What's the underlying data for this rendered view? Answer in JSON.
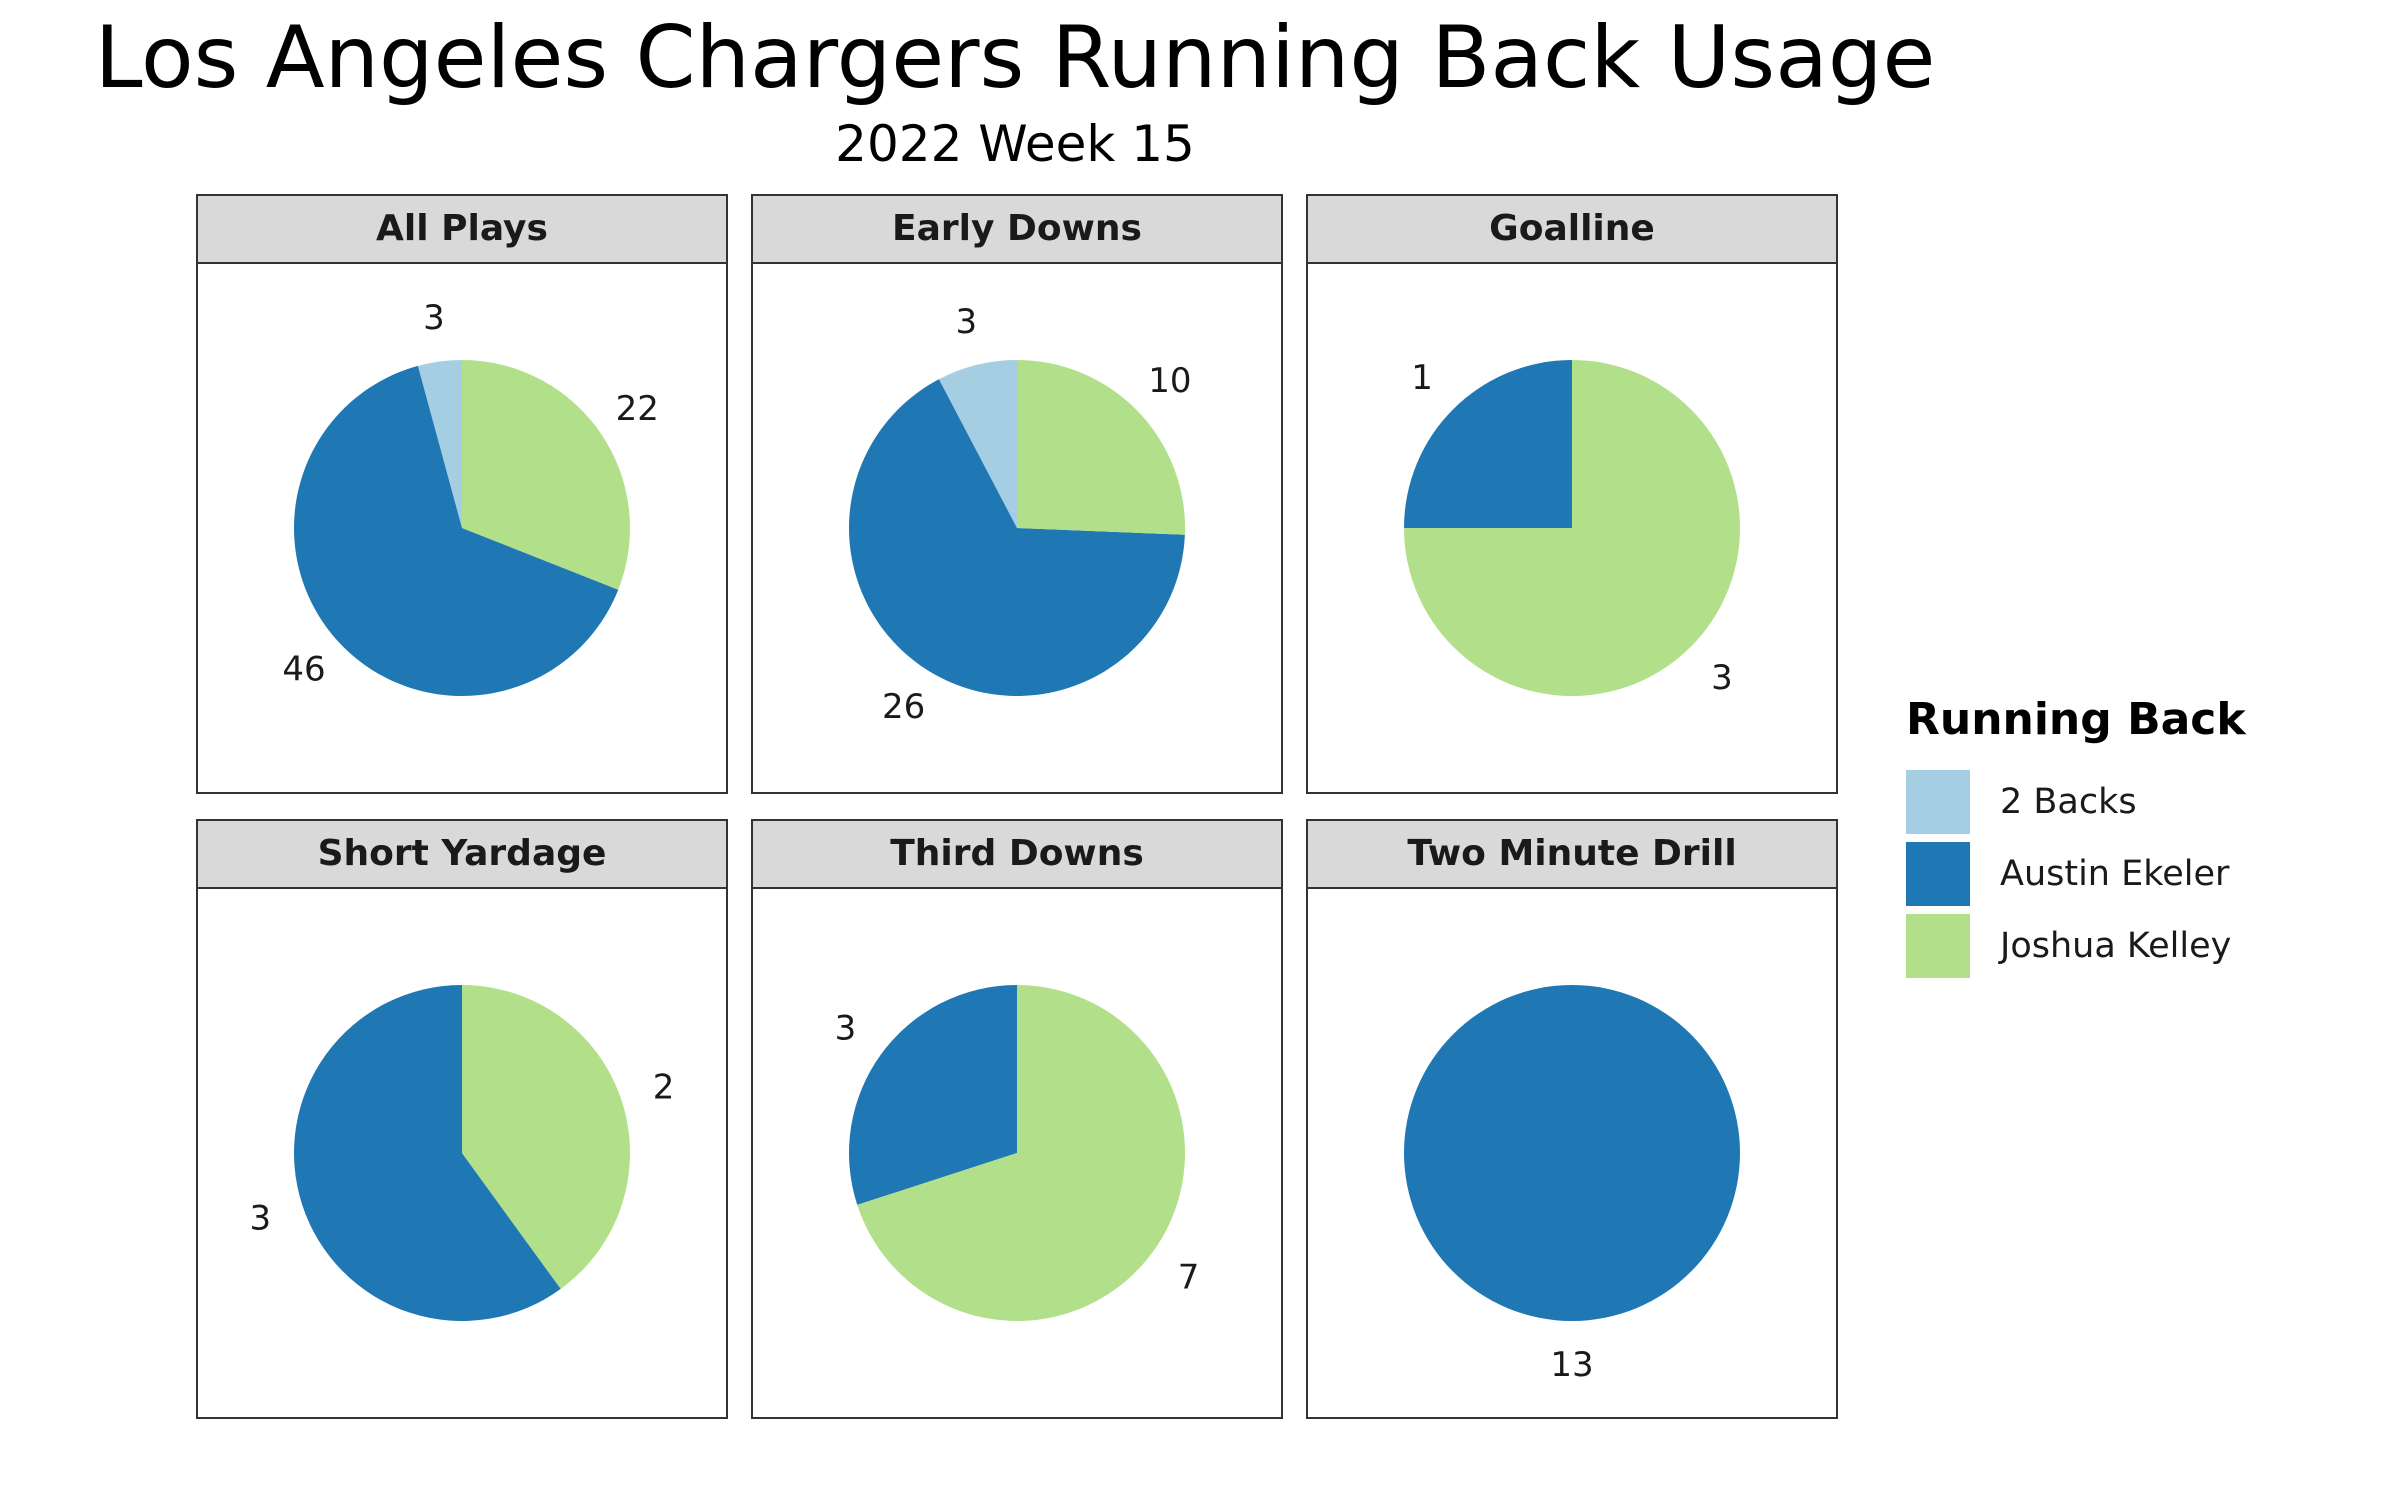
{
  "title": "Los Angeles Chargers Running Back Usage",
  "subtitle": "2022 Week 15",
  "legend": {
    "title": "Running Back",
    "items": [
      {
        "label": "2 Backs",
        "color": "#a6cee3"
      },
      {
        "label": "Austin Ekeler",
        "color": "#1f78b4"
      },
      {
        "label": "Joshua Kelley",
        "color": "#b2df8a"
      }
    ]
  },
  "chart_data": {
    "type": "pie",
    "facet_order": [
      "All Plays",
      "Early Downs",
      "Goalline",
      "Short Yardage",
      "Third Downs",
      "Two Minute Drill"
    ],
    "series_names": [
      "2 Backs",
      "Austin Ekeler",
      "Joshua Kelley"
    ],
    "colors": {
      "2 Backs": "#a6cee3",
      "Austin Ekeler": "#1f78b4",
      "Joshua Kelley": "#b2df8a"
    },
    "panels": [
      {
        "name": "All Plays",
        "slices": [
          {
            "label": "2 Backs",
            "value": 3
          },
          {
            "label": "Austin Ekeler",
            "value": 46
          },
          {
            "label": "Joshua Kelley",
            "value": 22
          }
        ]
      },
      {
        "name": "Early Downs",
        "slices": [
          {
            "label": "2 Backs",
            "value": 3
          },
          {
            "label": "Austin Ekeler",
            "value": 26
          },
          {
            "label": "Joshua Kelley",
            "value": 10
          }
        ]
      },
      {
        "name": "Goalline",
        "slices": [
          {
            "label": "Austin Ekeler",
            "value": 1
          },
          {
            "label": "Joshua Kelley",
            "value": 3
          }
        ]
      },
      {
        "name": "Short Yardage",
        "slices": [
          {
            "label": "Austin Ekeler",
            "value": 3
          },
          {
            "label": "Joshua Kelley",
            "value": 2
          }
        ]
      },
      {
        "name": "Third Downs",
        "slices": [
          {
            "label": "Austin Ekeler",
            "value": 3
          },
          {
            "label": "Joshua Kelley",
            "value": 7
          }
        ]
      },
      {
        "name": "Two Minute Drill",
        "slices": [
          {
            "label": "Austin Ekeler",
            "value": 13
          }
        ]
      }
    ]
  }
}
